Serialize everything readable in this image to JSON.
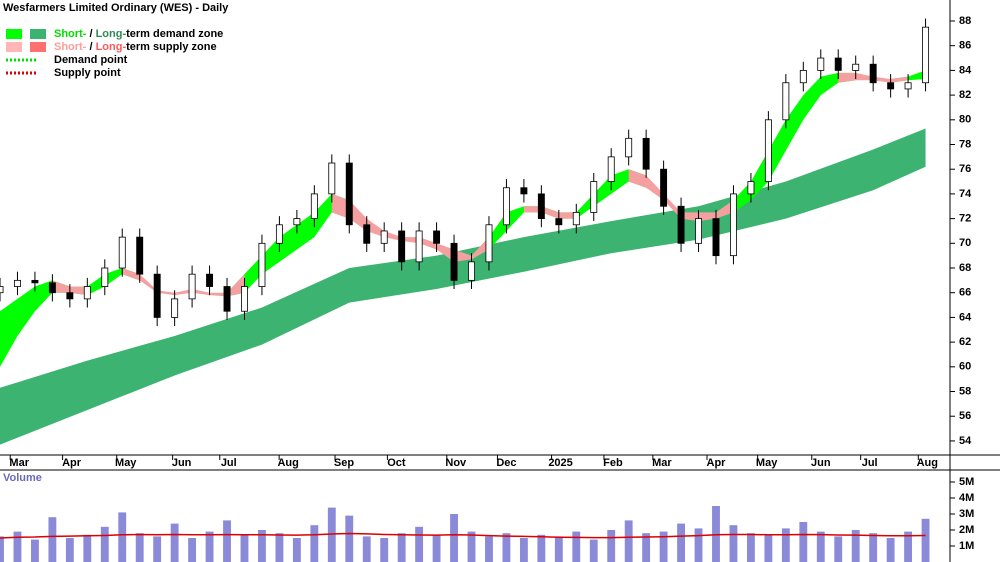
{
  "chart_data": [
    {
      "type": "candlestick",
      "title": "Wesfarmers Limited Ordinary (WES) - Daily",
      "legend": [
        {
          "swatches": [
            "#00ff00",
            "#3cb371"
          ],
          "style": "box",
          "parts": [
            {
              "text": "Short-",
              "color": "#00dd00"
            },
            {
              "text": " / "
            },
            {
              "text": "Long-",
              "color": "#2e8b57"
            },
            {
              "text": "term demand zone"
            }
          ]
        },
        {
          "swatches": [
            "#ffb6b6",
            "#ff7070"
          ],
          "style": "box",
          "parts": [
            {
              "text": "Short-",
              "color": "#ff9c9c"
            },
            {
              "text": " / "
            },
            {
              "text": "Long-",
              "color": "#ff5a5a"
            },
            {
              "text": "term supply zone"
            }
          ]
        },
        {
          "swatches": [
            "#00dd00"
          ],
          "style": "dotted",
          "parts": [
            {
              "text": "Demand point"
            }
          ]
        },
        {
          "swatches": [
            "#dd0000"
          ],
          "style": "dotted",
          "parts": [
            {
              "text": "Supply point"
            }
          ]
        }
      ],
      "x": [
        0,
        10,
        20,
        30,
        40,
        50,
        60,
        70,
        80,
        90,
        100,
        110,
        120,
        130,
        140,
        150,
        160,
        170,
        180,
        190,
        200,
        210,
        220,
        230,
        240,
        250,
        260,
        270,
        280,
        290,
        300,
        310,
        320,
        330,
        340,
        350,
        360,
        370,
        380,
        390,
        400,
        410,
        420,
        430,
        440,
        450,
        460,
        470,
        480,
        490,
        500,
        510,
        520,
        530
      ],
      "open": [
        66.0,
        66.5,
        67,
        66.8,
        66,
        65.5,
        66.5,
        68,
        70.5,
        67.5,
        64,
        65.5,
        67.5,
        66.5,
        64.5,
        66.5,
        70,
        71.5,
        72,
        74,
        76.5,
        71.5,
        70,
        71,
        68.5,
        71,
        70,
        67,
        68.5,
        71.5,
        74.5,
        74,
        72,
        71.5,
        72.5,
        75,
        77,
        78.5,
        76,
        73,
        70,
        72,
        69,
        74,
        75,
        80,
        83,
        84,
        85,
        84,
        84.5,
        83,
        82.5,
        83
      ],
      "high": [
        67.2,
        67.7,
        67.7,
        67.5,
        66.7,
        67.2,
        68.7,
        71.2,
        71.2,
        68.2,
        66.2,
        68.2,
        68.2,
        67.2,
        67.2,
        70.7,
        72.2,
        72.7,
        74.7,
        77.2,
        77.2,
        72.2,
        71.7,
        71.7,
        71.7,
        71.7,
        70.7,
        69.2,
        72.2,
        75.2,
        75.2,
        74.7,
        72.7,
        73.2,
        75.7,
        77.7,
        79.2,
        79.2,
        76.7,
        73.7,
        72.7,
        72.7,
        74.7,
        75.7,
        80.7,
        83.7,
        84.7,
        85.7,
        85.7,
        85.2,
        85.2,
        83.7,
        83.7,
        88.2
      ],
      "low": [
        65.3,
        65.8,
        66.1,
        65.3,
        64.8,
        64.8,
        65.8,
        67.3,
        66.8,
        63.3,
        63.3,
        64.8,
        65.8,
        63.8,
        63.8,
        65.8,
        69.3,
        70.8,
        71.3,
        73.3,
        70.8,
        69.3,
        69.3,
        67.8,
        67.8,
        69.3,
        66.3,
        66.3,
        67.8,
        70.8,
        73.3,
        71.3,
        70.8,
        70.8,
        71.8,
        74.3,
        76.3,
        75.3,
        72.3,
        69.3,
        69.3,
        68.3,
        68.3,
        73.3,
        74.3,
        79.3,
        82.3,
        83.3,
        83.3,
        83.3,
        82.3,
        81.8,
        81.8,
        82.3
      ],
      "close": [
        66.5,
        67,
        66.8,
        66,
        65.5,
        66.5,
        68,
        70.5,
        67.5,
        64,
        65.5,
        67.5,
        66.5,
        64.5,
        66.5,
        70,
        71.5,
        72,
        74,
        76.5,
        71.5,
        70,
        71,
        68.5,
        71,
        70,
        67,
        68.5,
        71.5,
        74.5,
        74,
        72,
        71.5,
        72.5,
        75,
        77,
        78.5,
        76,
        73,
        70,
        72,
        69,
        74,
        75,
        80,
        83,
        84,
        85,
        84,
        84.5,
        83,
        82.5,
        83,
        87.5
      ],
      "zones": [
        {
          "color": "#3cb371",
          "x": [
            0,
            50,
            100,
            150,
            200,
            250,
            300,
            350,
            400,
            450,
            500,
            530
          ],
          "upper": [
            58.3,
            60.5,
            62.5,
            64.8,
            68,
            69,
            70.5,
            71.8,
            73,
            75,
            77.6,
            79.3
          ],
          "lower": [
            53.7,
            56.5,
            59.3,
            61.8,
            65.2,
            66.3,
            67.7,
            69.2,
            70.3,
            72,
            74.3,
            76.2
          ]
        },
        {
          "color": "#00ff00",
          "x": [
            0,
            10,
            20,
            30,
            40,
            50,
            60,
            70,
            80,
            90,
            100,
            110,
            120,
            130,
            140,
            150,
            160,
            170,
            180,
            190,
            200,
            210,
            220,
            230,
            240,
            250,
            260,
            270,
            280,
            290,
            300,
            310,
            320,
            330,
            340,
            350,
            360,
            370,
            380,
            390,
            400,
            410,
            420,
            430,
            440,
            450,
            460,
            470,
            480,
            490,
            500,
            510,
            520,
            530
          ],
          "upper": [
            64.5,
            65.5,
            66.5,
            67,
            66.5,
            66.5,
            67.5,
            68,
            67.5,
            null,
            null,
            null,
            null,
            66,
            67.5,
            69,
            70.5,
            71.5,
            72.5,
            74,
            73.5,
            null,
            null,
            null,
            null,
            null,
            null,
            69,
            70.5,
            72.5,
            73,
            73,
            72.5,
            72.5,
            74,
            75.5,
            76,
            75.5,
            null,
            null,
            null,
            72.5,
            73.5,
            75,
            77.5,
            80,
            82,
            83.5,
            83.8,
            83.8,
            null,
            83.3,
            83.5,
            84
          ],
          "lower": [
            60,
            62.5,
            64.5,
            66,
            66,
            65.8,
            66.5,
            67.5,
            67,
            null,
            null,
            null,
            null,
            65.7,
            66,
            67.5,
            68.5,
            69.5,
            70.5,
            72.5,
            72,
            null,
            null,
            null,
            null,
            null,
            null,
            68.7,
            69.5,
            71,
            72.5,
            72.5,
            72,
            72,
            73,
            74,
            75,
            74.5,
            null,
            null,
            null,
            72,
            72.5,
            73.5,
            75,
            77.5,
            80,
            82,
            83,
            83.2,
            null,
            83,
            83.2,
            83.3
          ]
        },
        {
          "color": "#f4a0a0",
          "x": [
            0,
            10,
            20,
            30,
            40,
            50,
            60,
            70,
            80,
            90,
            100,
            110,
            120,
            130,
            140,
            150,
            160,
            170,
            180,
            190,
            200,
            210,
            220,
            230,
            240,
            250,
            260,
            270,
            280,
            290,
            300,
            310,
            320,
            330,
            340,
            350,
            360,
            370,
            380,
            390,
            400,
            410,
            420,
            430,
            440,
            450,
            460,
            470,
            480,
            490,
            500,
            510,
            520,
            530
          ],
          "upper": [
            null,
            null,
            null,
            67,
            66.5,
            66.5,
            null,
            68,
            67.5,
            66.2,
            66,
            66.3,
            66,
            66,
            67.5,
            null,
            null,
            null,
            null,
            74,
            73.5,
            72,
            71,
            70.5,
            70.5,
            70,
            69.5,
            69,
            70.5,
            null,
            73,
            73,
            72.5,
            72.5,
            null,
            null,
            76,
            75.5,
            74,
            72.5,
            72.5,
            72.5,
            73.5,
            null,
            null,
            null,
            null,
            null,
            83.8,
            83.8,
            83.5,
            83.3,
            83.5,
            null
          ],
          "lower": [
            null,
            null,
            null,
            66,
            66,
            65.8,
            null,
            67.5,
            67,
            66,
            65.8,
            66,
            65.8,
            65.7,
            66,
            null,
            null,
            null,
            null,
            72.5,
            72,
            71,
            70.5,
            70.2,
            70,
            69.5,
            68.5,
            68.7,
            69.5,
            null,
            72.5,
            72.5,
            72,
            72,
            null,
            null,
            75,
            74.5,
            73.5,
            72,
            71.8,
            72,
            72.5,
            null,
            null,
            null,
            null,
            null,
            83,
            83.2,
            83.2,
            83,
            83.2,
            null
          ]
        }
      ],
      "xlim": [
        0,
        544
      ],
      "xticks": [
        {
          "value": 11,
          "label": "Mar"
        },
        {
          "value": 41,
          "label": "Apr"
        },
        {
          "value": 72,
          "label": "May"
        },
        {
          "value": 104,
          "label": "Jun"
        },
        {
          "value": 131,
          "label": "Jul"
        },
        {
          "value": 165,
          "label": "Aug"
        },
        {
          "value": 197,
          "label": "Sep"
        },
        {
          "value": 227,
          "label": "Oct"
        },
        {
          "value": 261,
          "label": "Nov"
        },
        {
          "value": 290,
          "label": "Dec"
        },
        {
          "value": 321,
          "label": "2025"
        },
        {
          "value": 351,
          "label": "Feb"
        },
        {
          "value": 379,
          "label": "Mar"
        },
        {
          "value": 410,
          "label": "Apr"
        },
        {
          "value": 439,
          "label": "May"
        },
        {
          "value": 470,
          "label": "Jun"
        },
        {
          "value": 498,
          "label": "Jul"
        },
        {
          "value": 531,
          "label": "Aug"
        }
      ],
      "ylim": [
        52.86,
        89.7
      ],
      "yticks": [
        54,
        56,
        58,
        60,
        62,
        64,
        66,
        68,
        70,
        72,
        74,
        76,
        78,
        80,
        82,
        84,
        86,
        88
      ]
    },
    {
      "type": "bar",
      "label": "Volume",
      "color": "#8a8ad8",
      "x": [
        0,
        10,
        20,
        30,
        40,
        50,
        60,
        70,
        80,
        90,
        100,
        110,
        120,
        130,
        140,
        150,
        160,
        170,
        180,
        190,
        200,
        210,
        220,
        230,
        240,
        250,
        260,
        270,
        280,
        290,
        300,
        310,
        320,
        330,
        340,
        350,
        360,
        370,
        380,
        390,
        400,
        410,
        420,
        430,
        440,
        450,
        460,
        470,
        480,
        490,
        500,
        510,
        520,
        530
      ],
      "values": [
        1600000,
        1900000,
        1400000,
        2800000,
        1500000,
        1700000,
        2200000,
        3100000,
        1800000,
        1600000,
        2400000,
        1500000,
        1900000,
        2600000,
        1700000,
        2000000,
        1800000,
        1500000,
        2300000,
        3400000,
        2900000,
        1600000,
        1500000,
        1800000,
        2200000,
        1700000,
        3000000,
        1900000,
        1600000,
        1800000,
        1500000,
        1700000,
        1600000,
        1900000,
        1400000,
        2000000,
        2600000,
        1800000,
        1900000,
        2400000,
        2100000,
        3500000,
        2300000,
        1800000,
        1700000,
        2100000,
        2500000,
        1900000,
        1600000,
        2000000,
        1800000,
        1500000,
        1900000,
        2700000
      ],
      "average": {
        "color": "#dd0000",
        "values": [
          1500000,
          1550000,
          1560000,
          1600000,
          1620000,
          1640000,
          1660000,
          1700000,
          1720000,
          1700000,
          1720000,
          1700000,
          1700000,
          1710000,
          1700000,
          1700000,
          1690000,
          1680000,
          1700000,
          1750000,
          1780000,
          1760000,
          1720000,
          1700000,
          1690000,
          1680000,
          1700000,
          1690000,
          1650000,
          1620000,
          1600000,
          1580000,
          1550000,
          1540000,
          1520000,
          1520000,
          1550000,
          1560000,
          1580000,
          1620000,
          1650000,
          1700000,
          1720000,
          1720000,
          1700000,
          1700000,
          1720000,
          1710000,
          1690000,
          1680000,
          1660000,
          1640000,
          1640000,
          1660000
        ]
      },
      "xlim": [
        0,
        544
      ],
      "ylim": [
        0,
        5750000
      ],
      "yticks": [
        {
          "value": 1000000,
          "label": "1M"
        },
        {
          "value": 2000000,
          "label": "2M"
        },
        {
          "value": 3000000,
          "label": "3M"
        },
        {
          "value": 4000000,
          "label": "4M"
        },
        {
          "value": 5000000,
          "label": "5M"
        }
      ]
    }
  ]
}
